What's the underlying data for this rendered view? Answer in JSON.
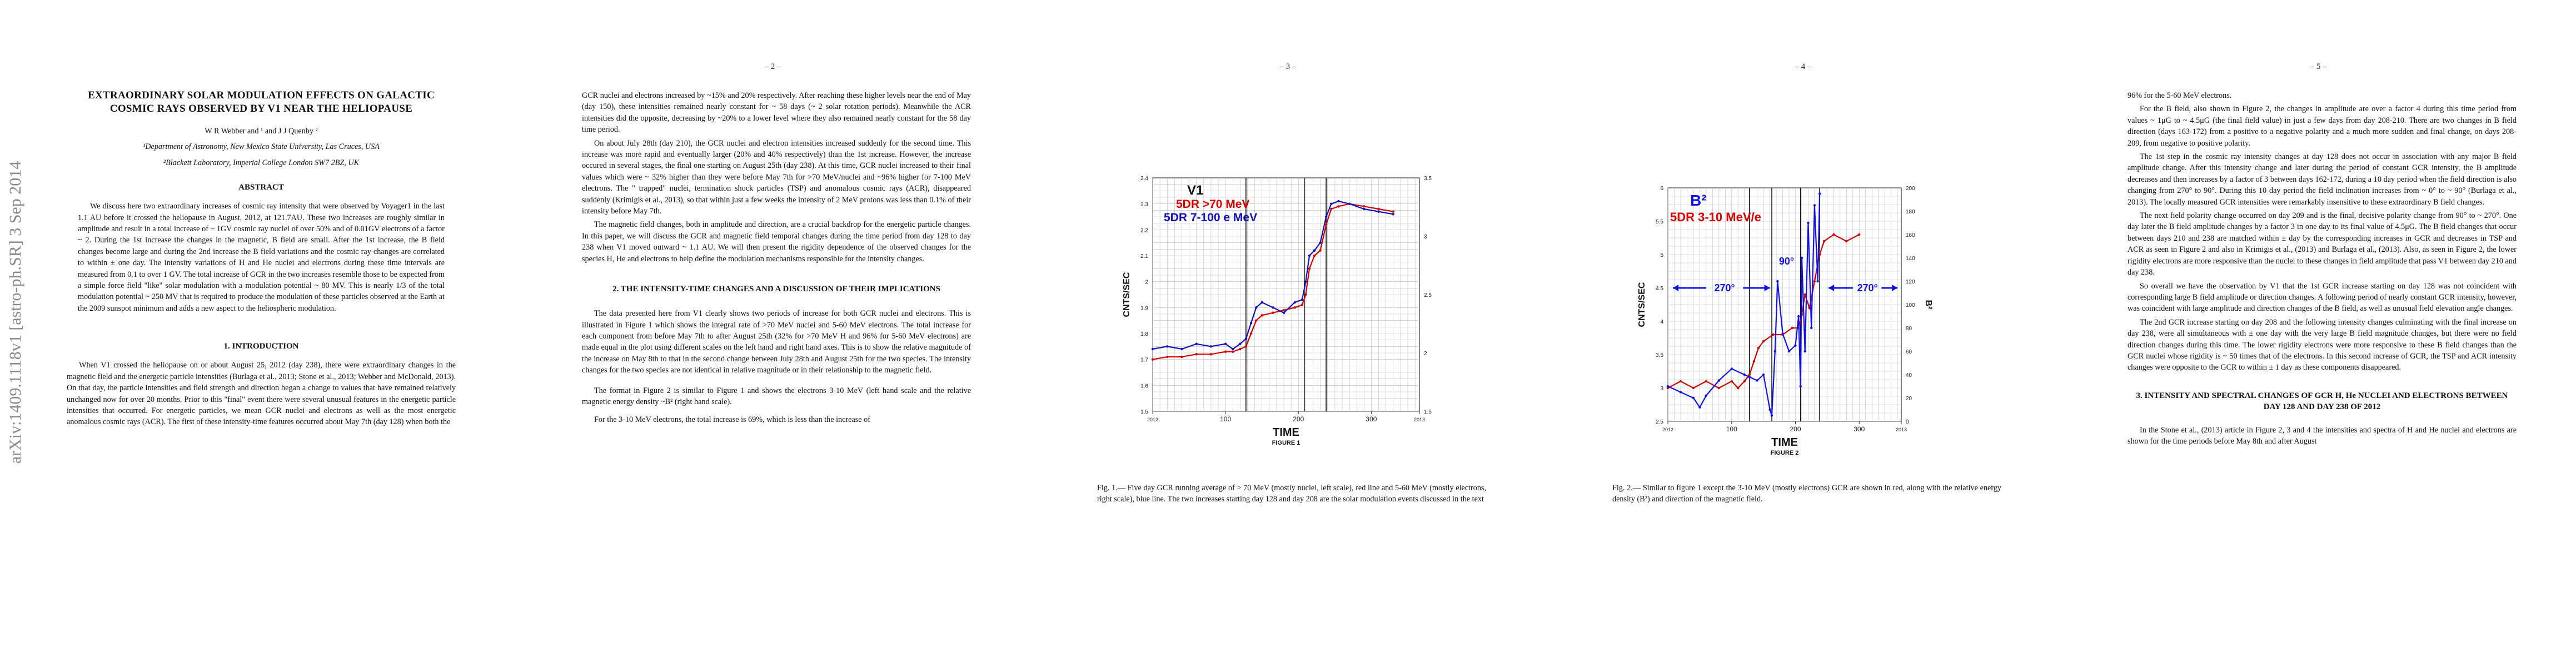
{
  "arxiv_id": "arXiv:1409.1118v1  [astro-ph.SR]  3 Sep 2014",
  "page1": {
    "title": "EXTRAORDINARY SOLAR MODULATION EFFECTS ON GALACTIC COSMIC RAYS OBSERVED BY V1 NEAR THE HELIOPAUSE",
    "authors": "W R Webber and ¹ and J J Quenby ²",
    "affil1": "¹Department of Astronomy, New Mexico State University, Las Cruces, USA",
    "affil2": "²Blackett Laboratory, Imperial College London SW7 2BZ, UK",
    "abstract_head": "ABSTRACT",
    "abstract": "We discuss here two extraordinary increases of cosmic ray intensity that were observed by Voyager1 in the last 1.1 AU before it crossed the heliopause in August, 2012, at 121.7AU. These two increases are roughly similar in amplitude and result in a total increase of ~ 1GV cosmic ray nuclei of over 50% and of 0.01GV electrons of a factor ~ 2. During the 1st increase the changes in the magnetic, B field are small. After the 1st increase, the B field changes become large and during the 2nd increase the B field variations and the cosmic ray changes are correlated to within ± one day. The intensity variations of H and He nuclei and electrons during these time intervals are measured from 0.1 to over 1 GV. The total increase of GCR in the two increases resemble those to be expected from a simple force field \"like\" solar modulation with a modulation potential ~ 80 MV. This is nearly 1/3 of the total modulation potential ~ 250 MV that is required to produce the modulation of these particles observed at the Earth at the 2009 sunspot minimum and adds a new aspect to the heliospheric modulation.",
    "intro_head": "1.   INTRODUCTION",
    "intro": "When V1 crossed the heliopause on or about August 25, 2012 (day 238), there were extraordinary changes in the magnetic field and the energetic particle intensities (Burlaga et al., 2013; Stone et al., 2013; Webber and McDonald, 2013). On that day, the particle intensities and field strength and direction began a change to values that have remained relatively unchanged now for over 20 months. Prior to this \"final\" event there were several unusual features in the energetic particle intensities that occurred. For energetic particles, we mean GCR nuclei and electrons as well as the most energetic anomalous cosmic rays (ACR). The first of these intensity-time features occurred about May 7th (day 128) when both the"
  },
  "page2": {
    "num": "– 2 –",
    "p1": "GCR nuclei and electrons increased by ~15% and 20% respectively. After reaching these higher levels near the end of May (day 150), these intensities remained nearly constant for ~ 58 days (~ 2 solar rotation periods). Meanwhile the ACR intensities did the opposite, decreasing by ~20% to a lower level where they also remained nearly constant for the 58 day time period.",
    "p2": "On about July 28th (day 210), the GCR nuclei and electron intensities increased suddenly for the second time. This increase was more rapid and eventually larger (20% and 40% respectively) than the 1st increase. However, the increase occured in several stages, the final one starting on August 25th (day 238). At this time, GCR nuclei increased to their final values which were ~ 32% higher than they were before May 7th for >70 MeV/nuclei and ~96% higher for 7-100 MeV electrons. The \" trapped\" nuclei, termination shock particles (TSP) and anomalous cosmic rays (ACR), disappeared suddenly (Krimigis et al., 2013), so that within just a few weeks the intensity of 2 MeV protons was less than 0.1% of their intensity before May 7th.",
    "p3": "The magnetic field changes, both in amplitude and direction, are a crucial backdrop for the energetic particle changes. In this paper, we will discuss the GCR and magnetic field temporal changes during the time period from day 128 to day 238 when V1 moved outward ~ 1.1 AU. We will then present the rigidity dependence of the observed changes for the species H, He and electrons to help define the modulation mechanisms responsible for the intensity changes.",
    "sec2_head": "2.   THE INTENSITY-TIME CHANGES AND A DISCUSSION OF THEIR IMPLICATIONS",
    "p4": "The data presented here from V1 clearly shows two periods of increase for both GCR nuclei and electrons. This is illustrated in Figure 1 which shows the integral rate of >70 MeV nuclei and 5-60 MeV electrons. The total increase for each component from before May 7th to after August 25th (32% for >70 MeV H and 96% for 5-60 MeV electrons) are made equal in the plot using different scales on the left hand and right hand axes. This is to show the relative magnitude of the increase on May 8th to that in the second change between July 28th and August 25th for the two species. The intensity changes for the two species are not identical in relative magnitude or in their relationship to the magnetic field.",
    "p5": "The format in Figure 2 is similar to Figure 1 and shows the electrons 3-10 MeV (left hand scale and the relative magnetic energy density ~B² (right hand scale).",
    "p6": "For the 3-10 MeV electrons, the total increase is 69%, which is less than the increase of"
  },
  "page3": {
    "num": "– 3 –",
    "caption": "Fig. 1.— Five day GCR running average of > 70 MeV (mostly nuclei, left scale), red line and 5-60 MeV (mostly electrons, right scale), blue line. The two increases starting day 128 and day 208 are the solar modulation events discussed in the text"
  },
  "page4": {
    "num": "– 4 –",
    "caption": "Fig. 2.— Similar to figure 1 except the 3-10 MeV (mostly electrons) GCR are shown in red, along with the relative energy density (B²) and direction of the magnetic field."
  },
  "page5": {
    "num": "– 5 –",
    "p1": "96% for the 5-60 MeV electrons.",
    "p2": "For the B field, also shown in Figure 2, the changes in amplitude are over a factor 4 during this time period from values ~ 1μG to ~ 4.5μG (the final field value) in just a few days from day 208-210. There are two changes in B field direction (days 163-172) from a positive to a negative polarity and a much more sudden and final change, on days 208-209, from negative to positive polarity.",
    "p3": "The 1st step in the cosmic ray intensity changes at day 128 does not occur in association with any major B field amplitude change. After this intensity change and later during the period of constant GCR intensity, the B amplitude decreases and then increases by a factor of 3 between days 162-172, during a 10 day period when the field direction is also changing from 270° to 90°. During this 10 day period the field inclination increases from ~ 0° to ~ 90° (Burlaga et al., 2013). The locally measured GCR intensities were remarkably insensitive to these extraordinary B field changes.",
    "p4": "The next field polarity change occurred on day 209 and is the final, decisive polarity change from 90° to ~ 270°. One day later the B field amplitude changes by a factor 3 in one day to its final value of 4.5μG. The B field changes that occur between days 210 and 238 are matched within ± day by the corresponding increases in GCR and decreases in TSP and ACR as seen in Figure 2 and also in Krimigis et al., (2013) and Burlaga et al., (2013). Also, as seen in Figure 2, the lower rigidity electrons are more responsive than the nuclei to these changes in field amplitude that pass V1 between day 210 and day 238.",
    "p5": "So overall we have the observation by V1 that the 1st GCR increase starting on day 128 was not coincident with corresponding large B field amplitude or direction changes. A following period of nearly constant GCR intensity, however, was coincident with large amplitude and direction changes of the B field, as well as unusual field elevation angle changes.",
    "p6": "The 2nd GCR increase starting on day 208 and the following intensity changes culminating with the final increase on day 238, were all simultaneous with ± one day with the very large B field magnitude changes, but there were no field direction changes during this time. The lower rigidity electrons were more responsive to these B field changes than the GCR nuclei whose rigidity is ~ 50 times that of the electrons. In this second increase of GCR, the TSP and ACR intensity changes were opposite to the GCR to within ± 1 day as these components disappeared.",
    "sec3_head": "3.   INTENSITY AND SPECTRAL CHANGES OF GCR H, He NUCLEI AND ELECTRONS BETWEEN DAY 128 AND DAY 238 OF 2012",
    "p7": "In the Stone et al., (2013) article in Figure 2, 3 and 4 the intensities and spectra of H and He nuclei and electrons are shown for the time periods before May 8th and after August"
  },
  "chart_data": [
    {
      "type": "line",
      "title": "FIGURE 1",
      "xlabel": "TIME",
      "ylabel": "CNTS/SEC",
      "legend": [
        "V1",
        "5DR >70 MeV",
        "5DR 7-100 e MeV"
      ],
      "legend_placement": "top-left",
      "xlim": [
        2012,
        2013
      ],
      "x_ticks": [
        "2012",
        "100",
        "200",
        "300",
        "2013"
      ],
      "ylim_left": [
        1.5,
        2.4
      ],
      "y_ticks_left": [
        "1.5",
        "1.6",
        "1.7",
        "1.8",
        "1.9",
        "2",
        "2.1",
        "2.2",
        "2.3",
        "2.4"
      ],
      "ylim_right": [
        1.5,
        3.5
      ],
      "y_ticks_right": [
        "1.5",
        "2",
        "2.5",
        "3",
        "3.5"
      ],
      "grid": true,
      "vertical_markers_day": [
        128,
        208,
        238
      ],
      "series": [
        {
          "name": "5DR >70 MeV",
          "color": "#d40000",
          "x": [
            0,
            20,
            40,
            60,
            80,
            100,
            110,
            120,
            128,
            135,
            142,
            150,
            165,
            180,
            195,
            205,
            210,
            215,
            222,
            230,
            238,
            245,
            255,
            270,
            290,
            310,
            330
          ],
          "y": [
            1.7,
            1.71,
            1.71,
            1.72,
            1.72,
            1.73,
            1.73,
            1.74,
            1.75,
            1.8,
            1.85,
            1.87,
            1.88,
            1.89,
            1.9,
            1.91,
            1.95,
            2.05,
            2.1,
            2.12,
            2.22,
            2.28,
            2.29,
            2.3,
            2.29,
            2.28,
            2.27
          ]
        },
        {
          "name": "5DR 7-100 e MeV",
          "color": "#1010c0",
          "x": [
            0,
            20,
            40,
            60,
            80,
            100,
            110,
            120,
            128,
            135,
            142,
            150,
            165,
            180,
            195,
            205,
            210,
            215,
            222,
            230,
            238,
            245,
            255,
            270,
            290,
            310,
            330
          ],
          "y": [
            1.74,
            1.75,
            1.74,
            1.76,
            1.75,
            1.76,
            1.74,
            1.76,
            1.78,
            1.84,
            1.9,
            1.92,
            1.9,
            1.88,
            1.92,
            1.93,
            2.0,
            2.1,
            2.12,
            2.15,
            2.25,
            2.3,
            2.31,
            2.3,
            2.28,
            2.27,
            2.26
          ]
        }
      ]
    },
    {
      "type": "line",
      "title": "FIGURE 2",
      "xlabel": "TIME",
      "ylabel": "CNTS/SEC",
      "ylabel_right": "B²",
      "legend": [
        "B²",
        "5DR 3-10 MeV/e"
      ],
      "legend_placement": "top-left",
      "xlim": [
        2012,
        2013
      ],
      "x_ticks": [
        "2012",
        "100",
        "200",
        "300",
        "2013"
      ],
      "ylim_left": [
        2.5,
        6
      ],
      "y_ticks_left": [
        "2.5",
        "3",
        "3.5",
        "4",
        "4.5",
        "5",
        "5.5",
        "6"
      ],
      "ylim_right": [
        0,
        200
      ],
      "y_ticks_right": [
        "0",
        "20",
        "40",
        "60",
        "80",
        "100",
        "120",
        "140",
        "160",
        "180",
        "200"
      ],
      "annotations": [
        "270°",
        "90°",
        "270°"
      ],
      "grid": true,
      "vertical_markers_day": [
        128,
        163,
        208,
        238
      ],
      "series": [
        {
          "name": "5DR 3-10 MeV/e",
          "color": "#cc0000",
          "x": [
            0,
            20,
            40,
            60,
            80,
            100,
            110,
            120,
            128,
            135,
            142,
            150,
            165,
            180,
            195,
            205,
            210,
            215,
            222,
            230,
            238,
            245,
            260,
            280,
            300
          ],
          "y": [
            3.0,
            3.1,
            3.0,
            3.1,
            3.0,
            3.1,
            3.0,
            3.1,
            3.2,
            3.4,
            3.6,
            3.7,
            3.8,
            3.8,
            3.9,
            3.9,
            4.1,
            4.4,
            4.2,
            4.6,
            5.0,
            5.2,
            5.3,
            5.2,
            5.3
          ]
        },
        {
          "name": "B²",
          "color": "#1010ee",
          "x": [
            0,
            20,
            40,
            50,
            60,
            80,
            100,
            120,
            128,
            140,
            150,
            160,
            163,
            168,
            172,
            180,
            190,
            200,
            205,
            208,
            210,
            215,
            220,
            225,
            230,
            235,
            238
          ],
          "y": [
            30,
            25,
            20,
            12,
            22,
            35,
            45,
            40,
            38,
            35,
            40,
            10,
            5,
            60,
            120,
            75,
            60,
            65,
            90,
            30,
            140,
            60,
            170,
            80,
            185,
            120,
            195
          ]
        }
      ]
    }
  ]
}
